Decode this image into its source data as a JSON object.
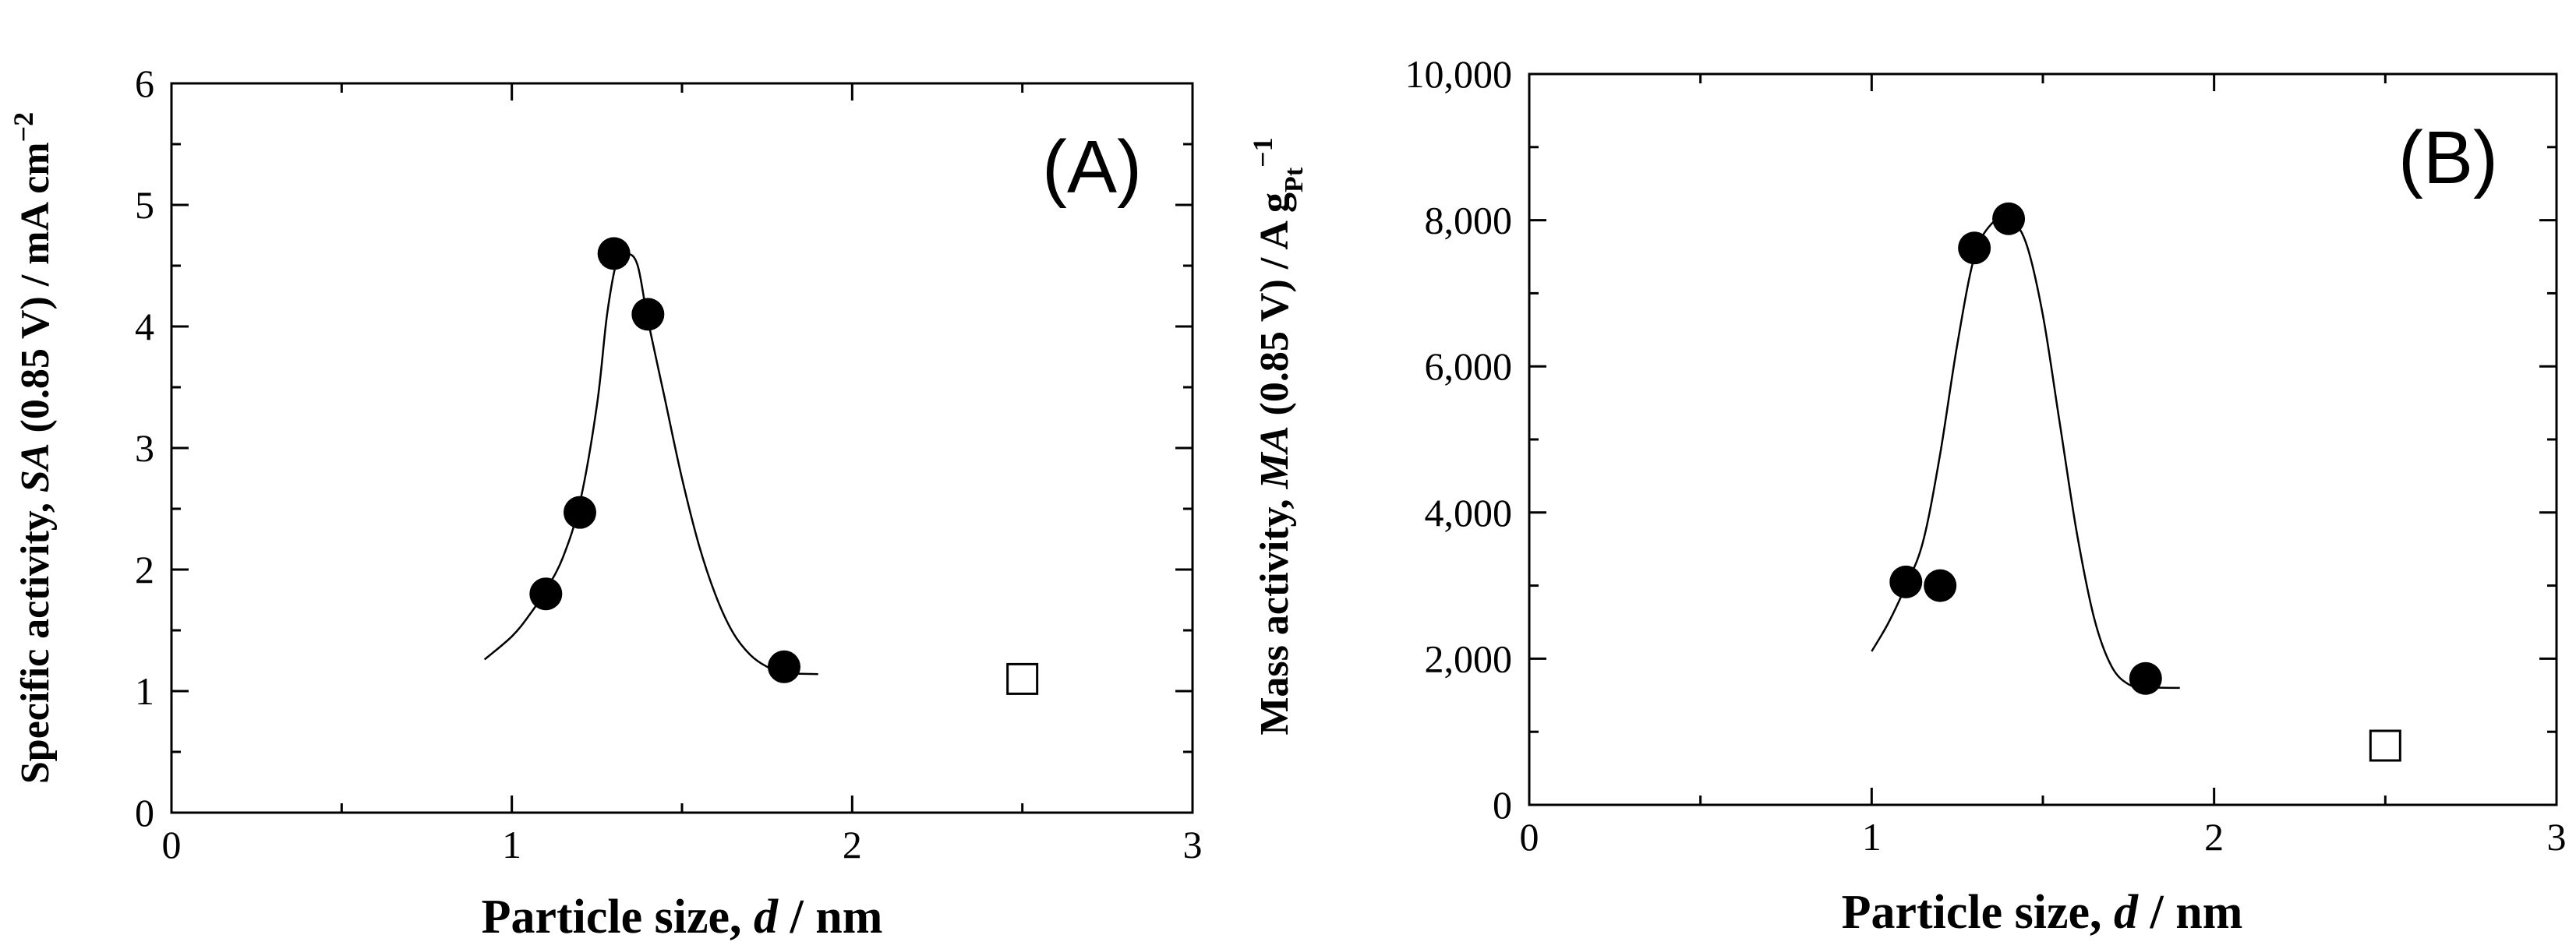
{
  "chart_data": [
    {
      "type": "scatter",
      "panel_label": "(A)",
      "xlabel": "Particle size, d / nm",
      "ylabel": "Specific activity, SA (0.85 V) / mA cm−2",
      "xlim": [
        0,
        3
      ],
      "ylim": [
        0,
        6
      ],
      "x_ticks": [
        "0",
        "1",
        "2",
        "3"
      ],
      "y_ticks": [
        "0",
        "1",
        "2",
        "3",
        "4",
        "5",
        "6"
      ],
      "grid": false,
      "series": [
        {
          "marker": "filled-circle",
          "x": [
            1.1,
            1.2,
            1.3,
            1.4,
            1.8
          ],
          "y": [
            1.8,
            2.47,
            4.6,
            4.1,
            1.2
          ]
        },
        {
          "marker": "open-square",
          "x": [
            2.5
          ],
          "y": [
            1.1
          ]
        }
      ],
      "fit_curve": {
        "x": [
          0.92,
          1.0,
          1.05,
          1.1,
          1.15,
          1.2,
          1.25,
          1.28,
          1.31,
          1.34,
          1.37,
          1.4,
          1.45,
          1.5,
          1.55,
          1.6,
          1.65,
          1.7,
          1.75,
          1.8,
          1.9
        ],
        "y": [
          1.26,
          1.45,
          1.62,
          1.83,
          2.1,
          2.55,
          3.35,
          4.1,
          4.55,
          4.6,
          4.5,
          4.05,
          3.4,
          2.75,
          2.2,
          1.78,
          1.48,
          1.3,
          1.2,
          1.15,
          1.14
        ]
      }
    },
    {
      "type": "scatter",
      "panel_label": "(B)",
      "xlabel": "Particle size, d / nm",
      "ylabel": "Mass activity, MA (0.85 V) / A gPt−1",
      "xlim": [
        0,
        3
      ],
      "ylim": [
        0,
        10000
      ],
      "x_ticks": [
        "0",
        "1",
        "2",
        "3"
      ],
      "y_ticks": [
        "0",
        "2,000",
        "4,000",
        "6,000",
        "8,000",
        "10,000"
      ],
      "grid": false,
      "series": [
        {
          "marker": "filled-circle",
          "x": [
            1.1,
            1.2,
            1.3,
            1.4,
            1.8
          ],
          "y": [
            3050,
            3000,
            7620,
            8020,
            1730
          ]
        },
        {
          "marker": "open-square",
          "x": [
            2.5
          ],
          "y": [
            810
          ]
        }
      ],
      "fit_curve": {
        "x": [
          1.0,
          1.05,
          1.1,
          1.15,
          1.2,
          1.25,
          1.3,
          1.35,
          1.4,
          1.45,
          1.5,
          1.55,
          1.6,
          1.65,
          1.7,
          1.75,
          1.8,
          1.9
        ],
        "y": [
          2100,
          2500,
          3000,
          3600,
          4800,
          6300,
          7500,
          7950,
          8020,
          7700,
          6700,
          5200,
          3700,
          2550,
          1900,
          1650,
          1610,
          1600
        ]
      }
    }
  ]
}
